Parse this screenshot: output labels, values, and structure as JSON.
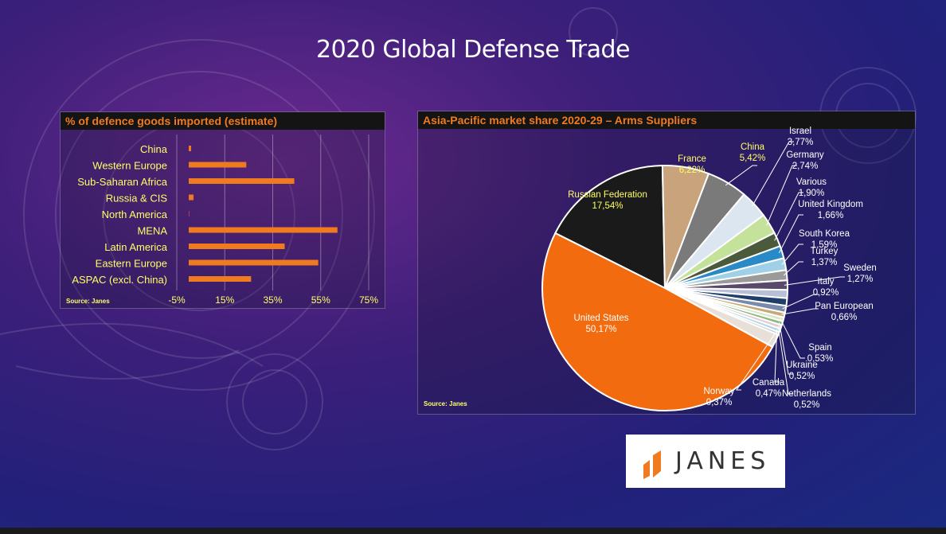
{
  "slide": {
    "title": "2020 Global Defense Trade"
  },
  "logo": {
    "text": "JANES",
    "color": "#f07a20"
  },
  "colors": {
    "accent": "#f07a20",
    "source": "#ffff66",
    "label": "#ffff66"
  },
  "chart_data": [
    {
      "type": "bar",
      "orientation": "horizontal",
      "title": "% of defence goods imported (estimate)",
      "source": "Source: Janes",
      "categories": [
        "China",
        "Western Europe",
        "Sub-Saharan Africa",
        "Russia & CIS",
        "North America",
        "MENA",
        "Latin America",
        "Eastern Europe",
        "ASPAC (excl. China)"
      ],
      "values": [
        1,
        24,
        44,
        2,
        0,
        62,
        40,
        54,
        26
      ],
      "xlim": [
        -5,
        75
      ],
      "xticks": [
        "-5%",
        "15%",
        "35%",
        "55%",
        "75%"
      ],
      "xtick_values": [
        -5,
        15,
        35,
        55,
        75
      ],
      "grid": true,
      "bar_color": "#f07a20"
    },
    {
      "type": "pie",
      "title": "Asia-Pacific market share 2020-29 – Arms Suppliers",
      "source": "Source: Janes",
      "slices": [
        {
          "name": "Russian Federation",
          "value_label": "17,54%",
          "value": 17.54,
          "color": "#1a1a1a"
        },
        {
          "name": "France",
          "value_label": "6,22%",
          "value": 6.22,
          "color": "#c9a37c"
        },
        {
          "name": "China",
          "value_label": "5,42%",
          "value": 5.42,
          "color": "#7a7a7a"
        },
        {
          "name": "Israel",
          "value_label": "3,77%",
          "value": 3.77,
          "color": "#dce6f0"
        },
        {
          "name": "Germany",
          "value_label": "2,74%",
          "value": 2.74,
          "color": "#c4e29a"
        },
        {
          "name": "Various",
          "value_label": "1,90%",
          "value": 1.9,
          "color": "#4a5a3a"
        },
        {
          "name": "United Kingdom",
          "value_label": "1,66%",
          "value": 1.66,
          "color": "#2a8ac8"
        },
        {
          "name": "South Korea",
          "value_label": "1,59%",
          "value": 1.59,
          "color": "#9fd0e8"
        },
        {
          "name": "Turkey",
          "value_label": "1,37%",
          "value": 1.37,
          "color": "#9a9a9a"
        },
        {
          "name": "Sweden",
          "value_label": "1,27%",
          "value": 1.27,
          "color": "#5a4a6a"
        },
        {
          "name": "",
          "value_label": "",
          "value": 1.1,
          "color": "#b8c0d8"
        },
        {
          "name": "",
          "value_label": "",
          "value": 1.0,
          "color": "#1f3f6a"
        },
        {
          "name": "Italy",
          "value_label": "0,92%",
          "value": 0.92,
          "color": "#7a8aaa"
        },
        {
          "name": "Pan European",
          "value_label": "0,66%",
          "value": 0.66,
          "color": "#c8a878"
        },
        {
          "name": "Spain",
          "value_label": "0,53%",
          "value": 0.53,
          "color": "#d8e8c8"
        },
        {
          "name": "Ukraine",
          "value_label": "0,52%",
          "value": 0.52,
          "color": "#8ab878"
        },
        {
          "name": "Netherlands",
          "value_label": "0,52%",
          "value": 0.52,
          "color": "#e8c8d8"
        },
        {
          "name": "Canada",
          "value_label": "0,47%",
          "value": 0.47,
          "color": "#a8d8e8"
        },
        {
          "name": "Norway",
          "value_label": "0,37%",
          "value": 0.37,
          "color": "#c8c8c8"
        },
        {
          "name": "",
          "value_label": "",
          "value": 1.76,
          "color": "#e8e0d8"
        },
        {
          "name": "United States",
          "value_label": "50,17%",
          "value": 50.17,
          "color": "#f26b0f"
        }
      ]
    }
  ]
}
